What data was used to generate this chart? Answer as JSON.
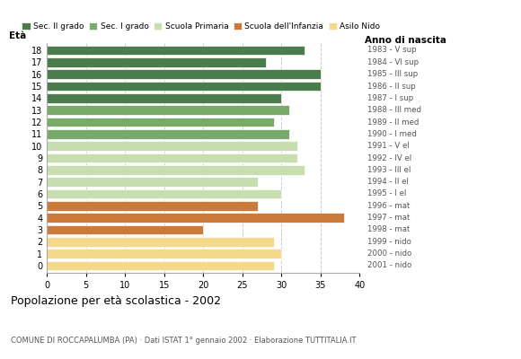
{
  "ages": [
    18,
    17,
    16,
    15,
    14,
    13,
    12,
    11,
    10,
    9,
    8,
    7,
    6,
    5,
    4,
    3,
    2,
    1,
    0
  ],
  "values": [
    33,
    28,
    35,
    35,
    30,
    31,
    29,
    31,
    32,
    32,
    33,
    27,
    30,
    27,
    38,
    20,
    29,
    30,
    29
  ],
  "colors": [
    "#4a7c4e",
    "#4a7c4e",
    "#4a7c4e",
    "#4a7c4e",
    "#4a7c4e",
    "#7aaa6a",
    "#7aaa6a",
    "#7aaa6a",
    "#c8ddb0",
    "#c8ddb0",
    "#c8ddb0",
    "#c8ddb0",
    "#c8ddb0",
    "#cc7a3a",
    "#cc7a3a",
    "#cc7a3a",
    "#f5d98b",
    "#f5d98b",
    "#f5d98b"
  ],
  "right_labels": [
    "1983 - V sup",
    "1984 - VI sup",
    "1985 - III sup",
    "1986 - II sup",
    "1987 - I sup",
    "1988 - III med",
    "1989 - II med",
    "1990 - I med",
    "1991 - V el",
    "1992 - IV el",
    "1993 - III el",
    "1994 - II el",
    "1995 - I el",
    "1996 - mat",
    "1997 - mat",
    "1998 - mat",
    "1999 - nido",
    "2000 - nido",
    "2001 - nido"
  ],
  "legend_labels": [
    "Sec. II grado",
    "Sec. I grado",
    "Scuola Primaria",
    "Scuola dell'Infanzia",
    "Asilo Nido"
  ],
  "legend_colors": [
    "#4a7c4e",
    "#7aaa6a",
    "#c8ddb0",
    "#cc7a3a",
    "#f5d98b"
  ],
  "title": "Popolazione per età scolastica - 2002",
  "subtitle": "COMUNE DI ROCCAPALUMBA (PA) · Dati ISTAT 1° gennaio 2002 · Elaborazione TUTTITALIA.IT",
  "xlabel_eta": "Età",
  "xlabel_anno": "Anno di nascita",
  "xlim": [
    0,
    40
  ],
  "xticks": [
    0,
    5,
    10,
    15,
    20,
    25,
    30,
    35,
    40
  ],
  "grid_color": "#cccccc",
  "background_color": "#ffffff",
  "bar_height": 0.82
}
